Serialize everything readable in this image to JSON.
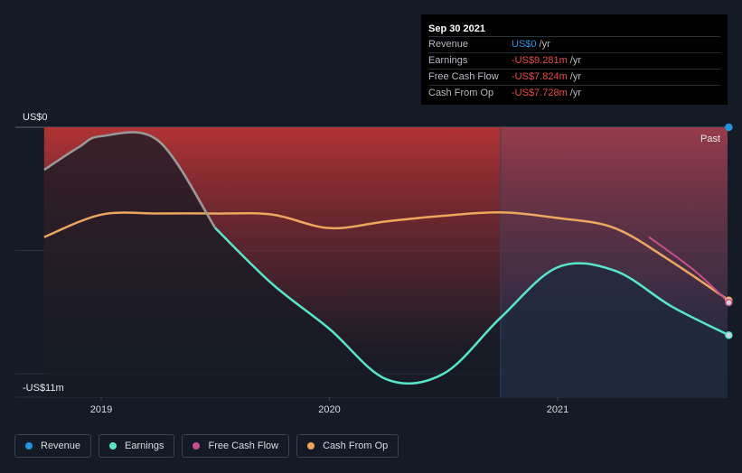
{
  "chart_data": {
    "type": "area",
    "x_ticks": [
      "2019",
      "2020",
      "2021"
    ],
    "y_labels": {
      "top": "US$0",
      "bottom": "-US$11m"
    },
    "ylim": [
      -11,
      0
    ],
    "region_label": "Past",
    "series": [
      {
        "name": "Revenue",
        "color": "#2394df",
        "points": [
          [
            2021.75,
            0
          ]
        ]
      },
      {
        "name": "Earnings",
        "color": "#58e6cb",
        "points": [
          [
            2018.75,
            -1.9
          ],
          [
            2018.9,
            -0.9
          ],
          [
            2019.0,
            -0.4
          ],
          [
            2019.25,
            -0.6
          ],
          [
            2019.5,
            -4.5
          ],
          [
            2019.75,
            -7.0
          ],
          [
            2020.0,
            -9.0
          ],
          [
            2020.25,
            -11.25
          ],
          [
            2020.5,
            -11.0
          ],
          [
            2020.75,
            -8.5
          ],
          [
            2021.0,
            -6.25
          ],
          [
            2021.25,
            -6.4
          ],
          [
            2021.5,
            -8.0
          ],
          [
            2021.75,
            -9.281
          ]
        ]
      },
      {
        "name": "Free Cash Flow",
        "color": "#c94f8c",
        "points": [
          [
            2021.4,
            -4.9
          ],
          [
            2021.6,
            -6.4
          ],
          [
            2021.75,
            -7.824
          ]
        ]
      },
      {
        "name": "Cash From Op",
        "color": "#eda65d",
        "points": [
          [
            2018.75,
            -4.9
          ],
          [
            2019.0,
            -3.9
          ],
          [
            2019.25,
            -3.85
          ],
          [
            2019.5,
            -3.85
          ],
          [
            2019.75,
            -3.9
          ],
          [
            2020.0,
            -4.5
          ],
          [
            2020.25,
            -4.2
          ],
          [
            2020.5,
            -3.95
          ],
          [
            2020.75,
            -3.8
          ],
          [
            2021.0,
            -4.05
          ],
          [
            2021.25,
            -4.5
          ],
          [
            2021.5,
            -6.0
          ],
          [
            2021.75,
            -7.728
          ]
        ]
      }
    ],
    "shaded_from": 2020.75,
    "grid": "horizontal"
  },
  "tooltip": {
    "date": "Sep 30 2021",
    "rows": [
      {
        "label": "Revenue",
        "value": "US$0",
        "unit": "/yr",
        "color": "#2394df"
      },
      {
        "label": "Earnings",
        "value": "-US$9.281m",
        "unit": "/yr",
        "color": "#e84b4b"
      },
      {
        "label": "Free Cash Flow",
        "value": "-US$7.824m",
        "unit": "/yr",
        "color": "#e84b4b"
      },
      {
        "label": "Cash From Op",
        "value": "-US$7.728m",
        "unit": "/yr",
        "color": "#e84b4b"
      }
    ]
  },
  "legend": [
    {
      "label": "Revenue",
      "color": "#2394df"
    },
    {
      "label": "Earnings",
      "color": "#58e6cb"
    },
    {
      "label": "Free Cash Flow",
      "color": "#c94f8c"
    },
    {
      "label": "Cash From Op",
      "color": "#eda65d"
    }
  ]
}
